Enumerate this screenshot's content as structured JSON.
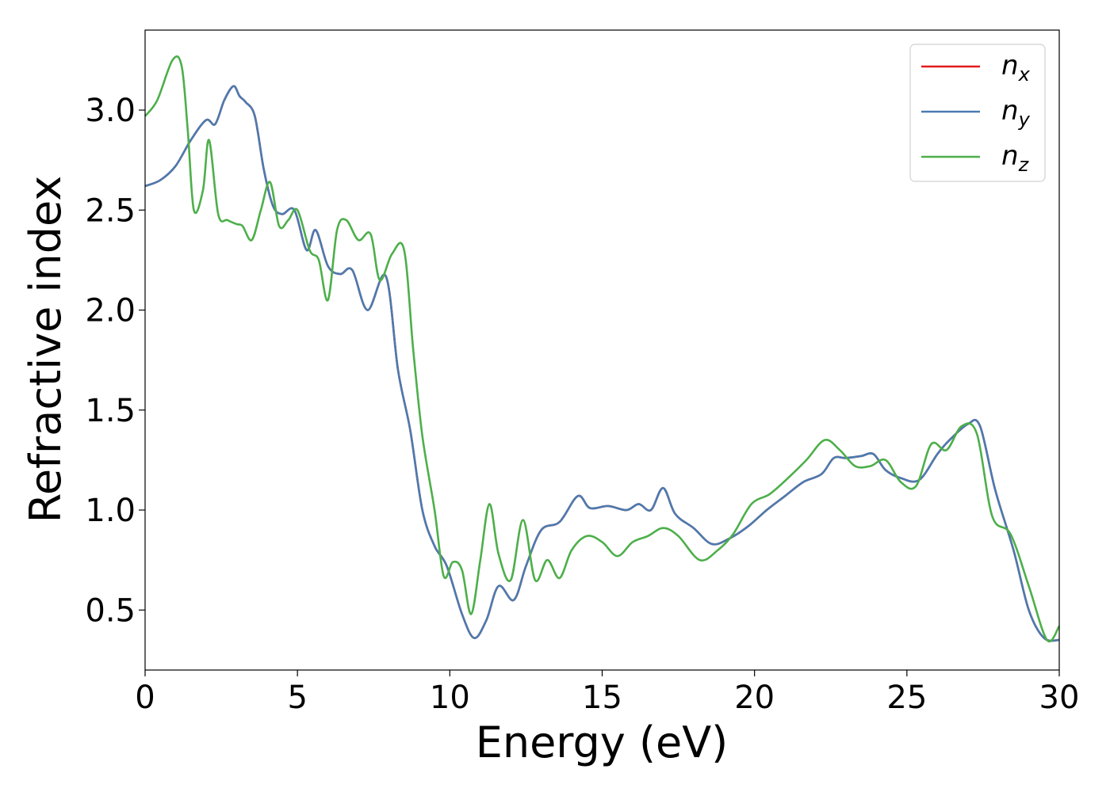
{
  "chart_data": {
    "type": "line",
    "title": "",
    "xlabel": "Energy (eV)",
    "ylabel": "Refractive index",
    "xlim": [
      0,
      30
    ],
    "ylim": [
      0.2,
      3.4
    ],
    "xticks": [
      0,
      5,
      10,
      15,
      20,
      25,
      30
    ],
    "xtick_labels": [
      "0",
      "5",
      "10",
      "15",
      "20",
      "25",
      "30"
    ],
    "yticks": [
      0.5,
      1.0,
      1.5,
      2.0,
      2.5,
      3.0
    ],
    "ytick_labels": [
      "0.5",
      "1.0",
      "1.5",
      "2.0",
      "2.5",
      "3.0"
    ],
    "grid": false,
    "legend_position": "top-right",
    "series": [
      {
        "name": "n",
        "subscript": "x",
        "color": "#e41a1c",
        "x": [
          0,
          0.5,
          1,
          1.5,
          2,
          2.3,
          2.6,
          2.9,
          3.1,
          3.3,
          3.6,
          3.9,
          4.2,
          4.5,
          4.9,
          5.3,
          5.6,
          6,
          6.4,
          6.8,
          7.3,
          7.9,
          8.3,
          8.7,
          9.1,
          9.5,
          9.9,
          10.4,
          10.8,
          11.2,
          11.6,
          12.1,
          12.5,
          13,
          13.6,
          14.2,
          14.6,
          15.2,
          15.8,
          16.2,
          16.6,
          17,
          17.4,
          18,
          18.6,
          19.2,
          19.8,
          20.4,
          21,
          21.6,
          22.2,
          22.6,
          23,
          23.5,
          23.9,
          24.3,
          24.8,
          25.4,
          26,
          26.4,
          27,
          27.4,
          27.9,
          28.5,
          29,
          29.5,
          30
        ],
        "y": [
          2.62,
          2.65,
          2.72,
          2.85,
          2.95,
          2.93,
          3.05,
          3.12,
          3.07,
          3.04,
          2.97,
          2.7,
          2.52,
          2.48,
          2.5,
          2.3,
          2.4,
          2.22,
          2.18,
          2.2,
          2.0,
          2.17,
          1.7,
          1.4,
          1.0,
          0.82,
          0.72,
          0.48,
          0.36,
          0.45,
          0.62,
          0.55,
          0.72,
          0.9,
          0.94,
          1.07,
          1.01,
          1.02,
          1.0,
          1.03,
          1.0,
          1.11,
          0.98,
          0.91,
          0.83,
          0.86,
          0.92,
          1.0,
          1.07,
          1.14,
          1.18,
          1.26,
          1.26,
          1.27,
          1.28,
          1.2,
          1.16,
          1.15,
          1.28,
          1.35,
          1.43,
          1.42,
          1.1,
          0.8,
          0.5,
          0.36,
          0.35
        ]
      },
      {
        "name": "n",
        "subscript": "y",
        "color": "#4a7bb0",
        "x": [
          0,
          0.5,
          1,
          1.5,
          2,
          2.3,
          2.6,
          2.9,
          3.1,
          3.3,
          3.6,
          3.9,
          4.2,
          4.5,
          4.9,
          5.3,
          5.6,
          6,
          6.4,
          6.8,
          7.3,
          7.9,
          8.3,
          8.7,
          9.1,
          9.5,
          9.9,
          10.4,
          10.8,
          11.2,
          11.6,
          12.1,
          12.5,
          13,
          13.6,
          14.2,
          14.6,
          15.2,
          15.8,
          16.2,
          16.6,
          17,
          17.4,
          18,
          18.6,
          19.2,
          19.8,
          20.4,
          21,
          21.6,
          22.2,
          22.6,
          23,
          23.5,
          23.9,
          24.3,
          24.8,
          25.4,
          26,
          26.4,
          27,
          27.4,
          27.9,
          28.5,
          29,
          29.5,
          30
        ],
        "y": [
          2.62,
          2.65,
          2.72,
          2.85,
          2.95,
          2.93,
          3.05,
          3.12,
          3.07,
          3.04,
          2.97,
          2.7,
          2.52,
          2.48,
          2.5,
          2.3,
          2.4,
          2.22,
          2.18,
          2.2,
          2.0,
          2.17,
          1.7,
          1.4,
          1.0,
          0.82,
          0.72,
          0.48,
          0.36,
          0.45,
          0.62,
          0.55,
          0.72,
          0.9,
          0.94,
          1.07,
          1.01,
          1.02,
          1.0,
          1.03,
          1.0,
          1.11,
          0.98,
          0.91,
          0.83,
          0.86,
          0.92,
          1.0,
          1.07,
          1.14,
          1.18,
          1.26,
          1.26,
          1.27,
          1.28,
          1.2,
          1.16,
          1.15,
          1.28,
          1.35,
          1.43,
          1.42,
          1.1,
          0.8,
          0.5,
          0.36,
          0.35
        ]
      },
      {
        "name": "n",
        "subscript": "z",
        "color": "#4daf4a",
        "x": [
          0,
          0.4,
          0.9,
          1.2,
          1.4,
          1.6,
          1.9,
          2.1,
          2.4,
          2.7,
          3.0,
          3.2,
          3.5,
          3.8,
          4.1,
          4.4,
          4.7,
          5.0,
          5.4,
          5.7,
          6.0,
          6.3,
          6.6,
          7.0,
          7.4,
          7.7,
          8.1,
          8.5,
          8.8,
          9.1,
          9.5,
          9.8,
          10.1,
          10.4,
          10.7,
          11.0,
          11.3,
          11.6,
          12.0,
          12.4,
          12.8,
          13.2,
          13.6,
          14.0,
          14.5,
          15.0,
          15.5,
          16.0,
          16.5,
          17.0,
          17.5,
          18.2,
          18.8,
          19.3,
          19.9,
          20.5,
          21.1,
          21.7,
          22.3,
          22.8,
          23.3,
          23.8,
          24.3,
          24.8,
          25.3,
          25.8,
          26.3,
          26.8,
          27.3,
          27.8,
          28.4,
          29.0,
          29.6,
          30
        ],
        "y": [
          2.97,
          3.05,
          3.25,
          3.22,
          2.9,
          2.5,
          2.6,
          2.85,
          2.48,
          2.45,
          2.43,
          2.42,
          2.35,
          2.5,
          2.64,
          2.42,
          2.45,
          2.5,
          2.3,
          2.25,
          2.05,
          2.4,
          2.45,
          2.35,
          2.38,
          2.15,
          2.28,
          2.3,
          1.8,
          1.37,
          1.0,
          0.67,
          0.74,
          0.7,
          0.48,
          0.75,
          1.03,
          0.78,
          0.65,
          0.95,
          0.65,
          0.75,
          0.66,
          0.8,
          0.87,
          0.84,
          0.77,
          0.84,
          0.87,
          0.91,
          0.87,
          0.75,
          0.8,
          0.88,
          1.03,
          1.08,
          1.16,
          1.25,
          1.35,
          1.3,
          1.22,
          1.22,
          1.25,
          1.14,
          1.12,
          1.33,
          1.3,
          1.42,
          1.38,
          0.97,
          0.88,
          0.62,
          0.35,
          0.42
        ]
      }
    ]
  }
}
